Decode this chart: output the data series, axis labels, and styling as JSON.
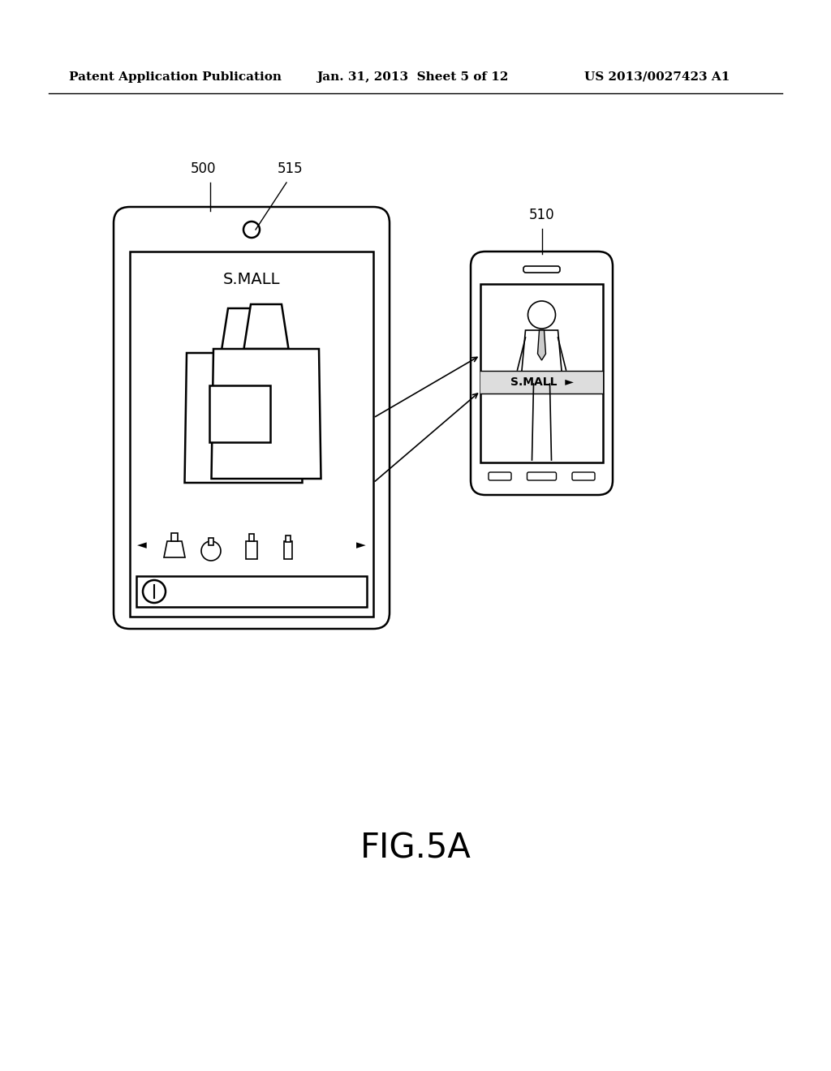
{
  "background_color": "#ffffff",
  "header_left": "Patent Application Publication",
  "header_mid": "Jan. 31, 2013  Sheet 5 of 12",
  "header_right": "US 2013/0027423 A1",
  "figure_label": "FIG.5A",
  "label_500": "500",
  "label_515": "515",
  "label_510": "510"
}
